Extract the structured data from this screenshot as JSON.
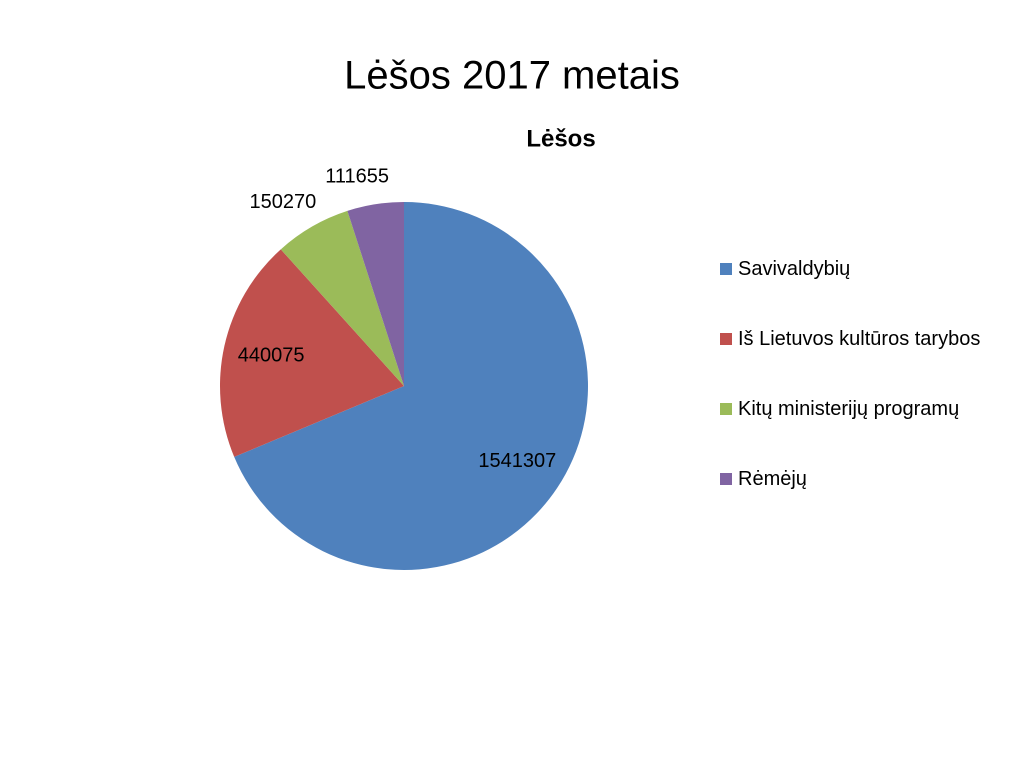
{
  "slide_title": "Lėšos 2017 metais",
  "chart_data": {
    "type": "pie",
    "title": "Lėšos",
    "categories": [
      "Savivaldybių",
      "Iš Lietuvos kultūros tarybos",
      "Kitų ministerijų programų",
      "Rėmėjų"
    ],
    "values": [
      1541307,
      440075,
      150270,
      111655
    ],
    "colors": [
      "#4f81bd",
      "#c0504d",
      "#9bbb59",
      "#8064a2"
    ],
    "legend": "right"
  }
}
